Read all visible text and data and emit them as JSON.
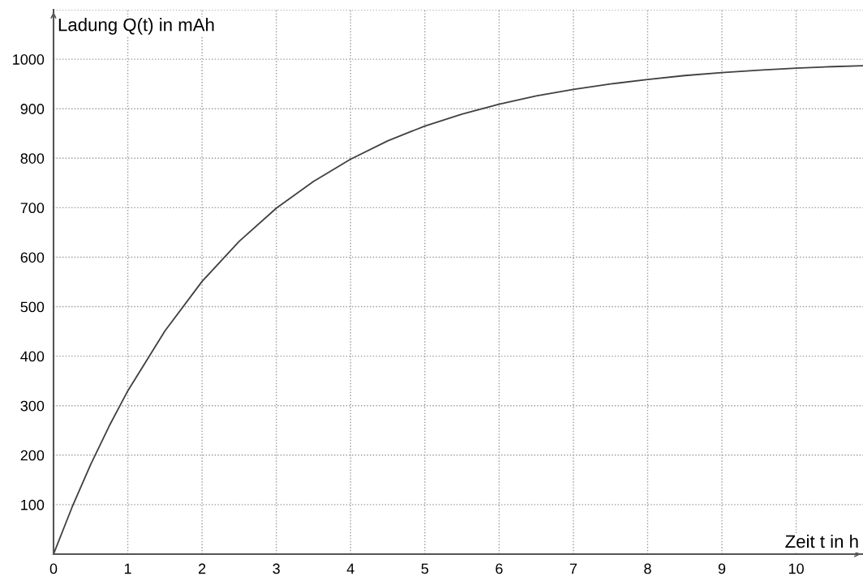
{
  "chart_data": {
    "type": "line",
    "xlabel": "Zeit t in h",
    "ylabel": "Ladung Q(t) in mAh",
    "x": [
      0,
      0.25,
      0.5,
      0.75,
      1,
      1.5,
      2,
      2.5,
      3,
      3.5,
      4,
      4.5,
      5,
      5.5,
      6,
      6.5,
      7,
      7.5,
      8,
      8.5,
      9,
      9.5,
      10,
      10.5,
      10.9
    ],
    "series": [
      {
        "color": "#404040",
        "values": [
          0,
          95,
          181,
          259,
          330,
          451,
          551,
          632,
          699,
          753,
          798,
          835,
          865,
          889,
          909,
          926,
          939,
          950,
          959,
          967,
          973,
          978,
          982,
          985,
          987
        ]
      }
    ],
    "xlim": [
      0,
      10.9
    ],
    "ylim": [
      0,
      1100
    ],
    "xticks": [
      0,
      1,
      2,
      3,
      4,
      5,
      6,
      7,
      8,
      9,
      10
    ],
    "yticks": [
      100,
      200,
      300,
      400,
      500,
      600,
      700,
      800,
      900,
      1000,
      {
        "value": 1100,
        "label": null
      }
    ],
    "grid": true,
    "legend": false,
    "marker": "none",
    "line_style": "solid"
  }
}
